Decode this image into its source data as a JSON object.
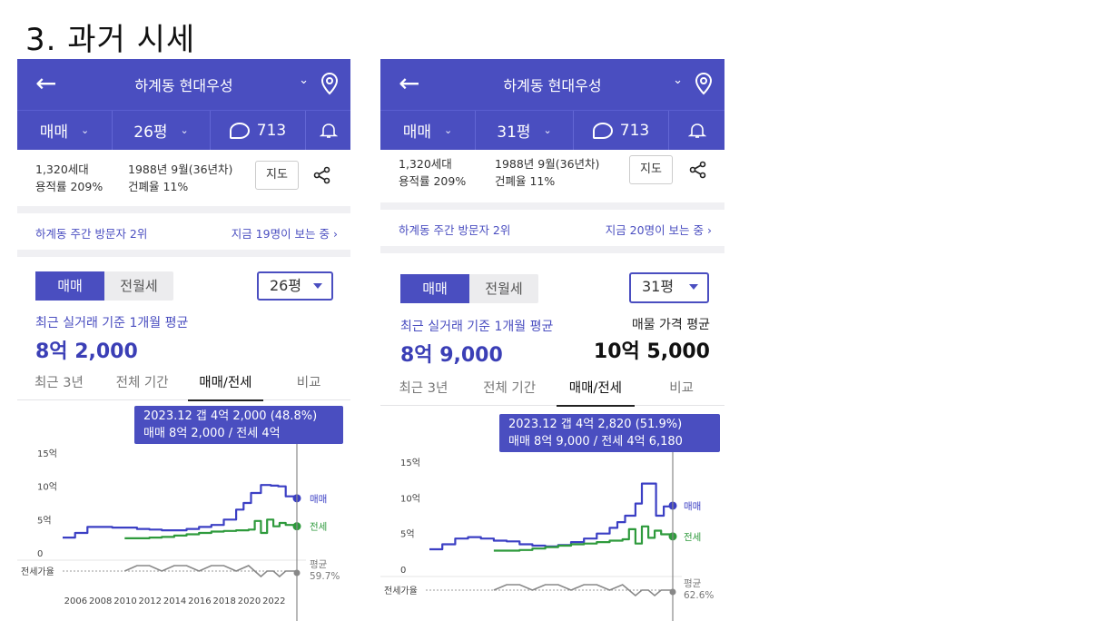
{
  "slide": {
    "title": "3. 과거 시세"
  },
  "panels": [
    {
      "header": {
        "back_icon": "arrow-left-icon",
        "title": "하계동 현대우성",
        "chevron": "chevron-down-icon",
        "pin_icon": "map-pin-icon"
      },
      "filters": {
        "trade": "매매",
        "size": "26평",
        "comments": "713",
        "bell_icon": "bell-icon"
      },
      "info": {
        "households": "1,320세대",
        "far": "용적률 209%",
        "built": "1988년 9월(36년차)",
        "bcr": "건폐율 11%",
        "map_button": "지도",
        "share_icon": "share-icon"
      },
      "visitor": {
        "rank": "하계동 주간 방문자 2위",
        "now": "지금 19명이 보는 중",
        "chevron": "›"
      },
      "segment": {
        "sale": "매매",
        "rent": "전월세"
      },
      "size_select": "26평",
      "avg": {
        "label": "최근 실거래 기준 1개월 평균",
        "value": "8억 2,000"
      },
      "tabs": [
        "최근 3년",
        "전체 기간",
        "매매/전세",
        "비교"
      ],
      "tooltip": {
        "line1": "2023.12  갭 4억 2,000 (48.8%)",
        "line2": "매매 8억 2,000 / 전세 4억"
      }
    },
    {
      "header": {
        "back_icon": "arrow-left-icon",
        "title": "하계동 현대우성",
        "chevron": "chevron-down-icon",
        "pin_icon": "map-pin-icon"
      },
      "filters": {
        "trade": "매매",
        "size": "31평",
        "comments": "713",
        "bell_icon": "bell-icon"
      },
      "info": {
        "households": "1,320세대",
        "far": "용적률 209%",
        "built": "1988년 9월(36년차)",
        "bcr": "건폐율 11%",
        "map_button": "지도",
        "share_icon": "share-icon"
      },
      "visitor": {
        "rank": "하계동 주간 방문자 2위",
        "now": "지금 20명이 보는 중",
        "chevron": "›"
      },
      "segment": {
        "sale": "매매",
        "rent": "전월세"
      },
      "size_select": "31평",
      "avg": {
        "label": "최근 실거래 기준 1개월 평균",
        "value": "8억 9,000"
      },
      "listing": {
        "label": "매물 가격 평균",
        "value": "10억 5,000"
      },
      "tabs": [
        "최근 3년",
        "전체 기간",
        "매매/전세",
        "비교"
      ],
      "tooltip": {
        "line1": "2023.12  갭 4억 2,820 (51.9%)",
        "line2": "매매 8억 9,000 / 전세 4억 6,180"
      }
    }
  ],
  "chart_data": [
    {
      "type": "line",
      "y_tick_labels": [
        "15억",
        "10억",
        "5억",
        "0"
      ],
      "ylim": [
        0,
        15
      ],
      "x_tick_labels": [
        "2006",
        "2008",
        "2010",
        "2012",
        "2014",
        "2016",
        "2018",
        "2020",
        "2022"
      ],
      "ratio_label": "전세가율",
      "ratio_end_label": [
        "평균",
        "59.7%"
      ],
      "colors": {
        "sale": "#3b3fc4",
        "jeonse": "#2e9a3c",
        "ratio": "#888888"
      },
      "series": [
        {
          "name": "매매",
          "x": [
            2005.0,
            2006.0,
            2007.0,
            2008.0,
            2009.0,
            2010.0,
            2011.0,
            2012.0,
            2013.0,
            2014.0,
            2015.0,
            2016.0,
            2017.0,
            2018.0,
            2019.0,
            2019.6,
            2020.2,
            2021.0,
            2021.8,
            2022.4,
            2023.0,
            2023.9
          ],
          "values": [
            2.3,
            3.0,
            3.9,
            3.9,
            3.8,
            3.8,
            3.6,
            3.5,
            3.4,
            3.4,
            3.6,
            3.9,
            4.2,
            5.0,
            6.5,
            7.5,
            9.0,
            10.2,
            10.1,
            10.0,
            8.5,
            8.2
          ]
        },
        {
          "name": "전세",
          "x": [
            2010.0,
            2011.0,
            2012.0,
            2013.0,
            2014.0,
            2015.0,
            2016.0,
            2017.0,
            2018.0,
            2019.0,
            2020.0,
            2020.5,
            2021.0,
            2021.5,
            2022.0,
            2022.5,
            2023.0,
            2023.9
          ],
          "values": [
            2.2,
            2.2,
            2.3,
            2.4,
            2.6,
            2.8,
            3.0,
            3.2,
            3.3,
            3.4,
            3.5,
            4.8,
            3.0,
            5.0,
            4.0,
            4.5,
            4.2,
            4.0
          ]
        }
      ]
    },
    {
      "type": "line",
      "y_tick_labels": [
        "15억",
        "10억",
        "5억",
        "0"
      ],
      "ylim": [
        0,
        15
      ],
      "ratio_label": "전세가율",
      "ratio_end_label": [
        "평균",
        "62.6%"
      ],
      "colors": {
        "sale": "#3b3fc4",
        "jeonse": "#2e9a3c",
        "ratio": "#888888"
      },
      "series": [
        {
          "name": "매매",
          "x": [
            2005.0,
            2006.0,
            2007.0,
            2008.0,
            2009.0,
            2010.0,
            2011.0,
            2012.0,
            2013.0,
            2014.0,
            2015.0,
            2016.0,
            2017.0,
            2018.0,
            2019.0,
            2019.6,
            2020.2,
            2021.0,
            2021.5,
            2022.0,
            2022.6,
            2023.2,
            2023.9
          ],
          "values": [
            2.8,
            3.5,
            4.3,
            4.5,
            4.3,
            4.0,
            3.9,
            3.5,
            3.3,
            3.2,
            3.4,
            3.8,
            4.3,
            5.0,
            5.8,
            6.6,
            7.5,
            9.2,
            12.0,
            12.0,
            7.5,
            8.8,
            8.9
          ]
        },
        {
          "name": "전세",
          "x": [
            2010.0,
            2011.0,
            2012.0,
            2013.0,
            2014.0,
            2015.0,
            2016.0,
            2017.0,
            2018.0,
            2019.0,
            2020.0,
            2020.5,
            2021.0,
            2021.5,
            2022.0,
            2022.5,
            2023.0,
            2023.9
          ],
          "values": [
            2.6,
            2.6,
            2.7,
            2.9,
            3.1,
            3.3,
            3.5,
            3.6,
            3.8,
            4.0,
            4.2,
            5.6,
            3.6,
            6.0,
            4.4,
            5.4,
            4.9,
            4.6
          ]
        }
      ]
    }
  ]
}
